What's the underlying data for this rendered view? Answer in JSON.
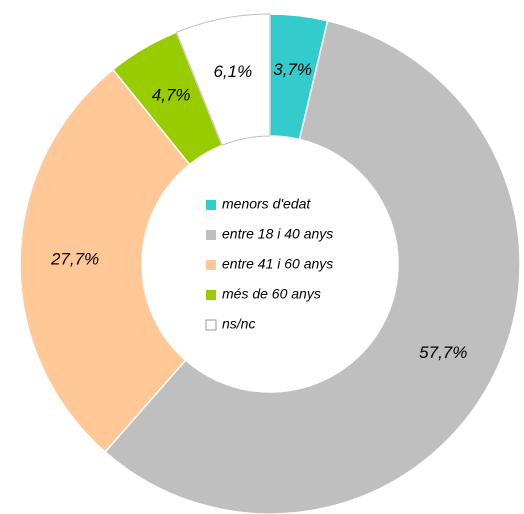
{
  "chart_data": {
    "type": "donut",
    "categories": [
      "menors d'edat",
      "entre 18 i 40 anys",
      "entre 41 i 60 anys",
      "més de 60 anys",
      "ns/nc"
    ],
    "values": [
      3.7,
      57.7,
      27.7,
      4.7,
      6.1
    ],
    "value_labels": [
      "3,7%",
      "57,7%",
      "27,7%",
      "4,7%",
      "6,1%"
    ],
    "colors": [
      "#33cccc",
      "#bfbfbf",
      "#ffc896",
      "#99cc00",
      "#ffffff"
    ]
  }
}
